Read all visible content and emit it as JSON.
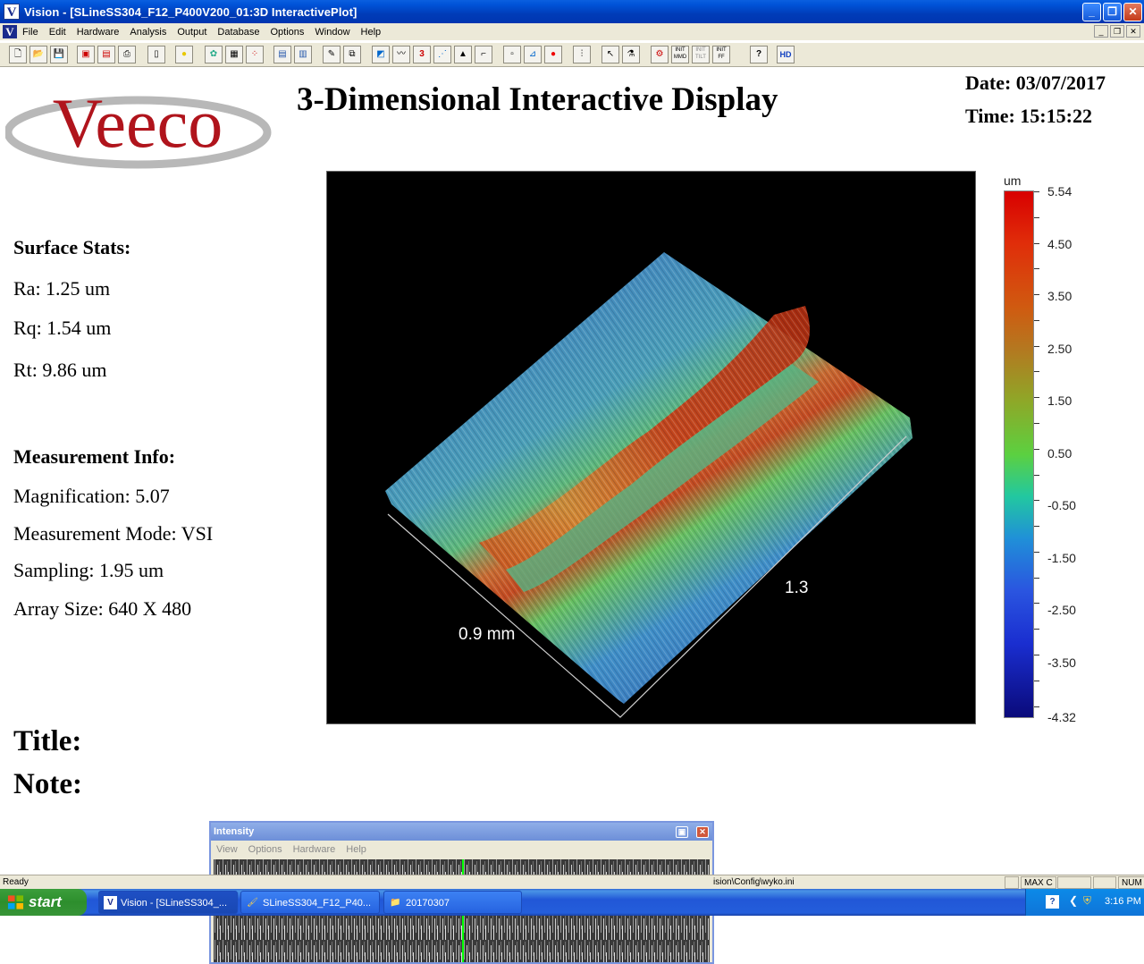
{
  "window": {
    "app_icon": "V",
    "title": "Vision - [SLineSS304_F12_P400V200_01:3D InteractivePlot]",
    "min_label": "_",
    "max_label": "❐",
    "close_label": "✕"
  },
  "menubar": {
    "icon": "V",
    "items": [
      "File",
      "Edit",
      "Hardware",
      "Analysis",
      "Output",
      "Database",
      "Options",
      "Window",
      "Help"
    ]
  },
  "toolbar": {
    "icons": [
      "new-file",
      "open-folder",
      "save",
      "print-preview",
      "print-setup",
      "print",
      "blank-page",
      "sun",
      "palette",
      "report",
      "color-dots",
      "table",
      "table-alt",
      "pen",
      "copy",
      "contour-map",
      "profile-plot",
      "3d-plot",
      "stats-plot",
      "histogram",
      "peak",
      "curve",
      "grid",
      "axes-a",
      "record",
      "tree",
      "cursor",
      "flask",
      "init",
      "init-mmd",
      "init-tilt",
      "init-ff",
      "help",
      "hd"
    ],
    "labels": {
      "init_mmd": "INIT MMD",
      "init_tilt": "INIT TILT",
      "init_ff": "INIT FF",
      "help": "?",
      "hd": "HD"
    }
  },
  "report": {
    "logo_text": "Veeco",
    "heading": "3-Dimensional Interactive Display",
    "date": "Date: 03/07/2017",
    "time": "Time: 15:15:22",
    "surface_stats_title": "Surface Stats:",
    "ra": "Ra: 1.25 um",
    "rq": "Rq: 1.54 um",
    "rt": "Rt: 9.86 um",
    "measurement_info_title": "Measurement Info:",
    "magnification": "Magnification: 5.07",
    "mode": "Measurement Mode: VSI",
    "sampling": "Sampling: 1.95 um",
    "array_size": "Array Size: 640 X 480",
    "title_label": "Title:",
    "note_label": "Note:"
  },
  "plot": {
    "axis_label_x": "0.9 mm",
    "axis_label_y": "1.3"
  },
  "colorbar": {
    "unit": "um",
    "ticks": [
      "5.54",
      "4.50",
      "3.50",
      "2.50",
      "1.50",
      "0.50",
      "-0.50",
      "-1.50",
      "-2.50",
      "-3.50",
      "-4.32"
    ],
    "colors": {
      "max": "#d80000",
      "mid": "#5cd040",
      "min": "#0a0a7a"
    }
  },
  "intensity_window": {
    "title": "Intensity",
    "menu": [
      "View",
      "Options",
      "Hardware",
      "Help"
    ],
    "cursor_color": "#00ff00"
  },
  "statusbar": {
    "ready": "Ready",
    "config_path": "ision\\Config\\wyko.ini",
    "max_c": "MAX C",
    "num": "NUM"
  },
  "taskbar": {
    "start": "start",
    "tasks": [
      "Vision - [SLineSS304_...",
      "SLineSS304_F12_P40...",
      "20170307"
    ],
    "clock": "3:16 PM"
  }
}
